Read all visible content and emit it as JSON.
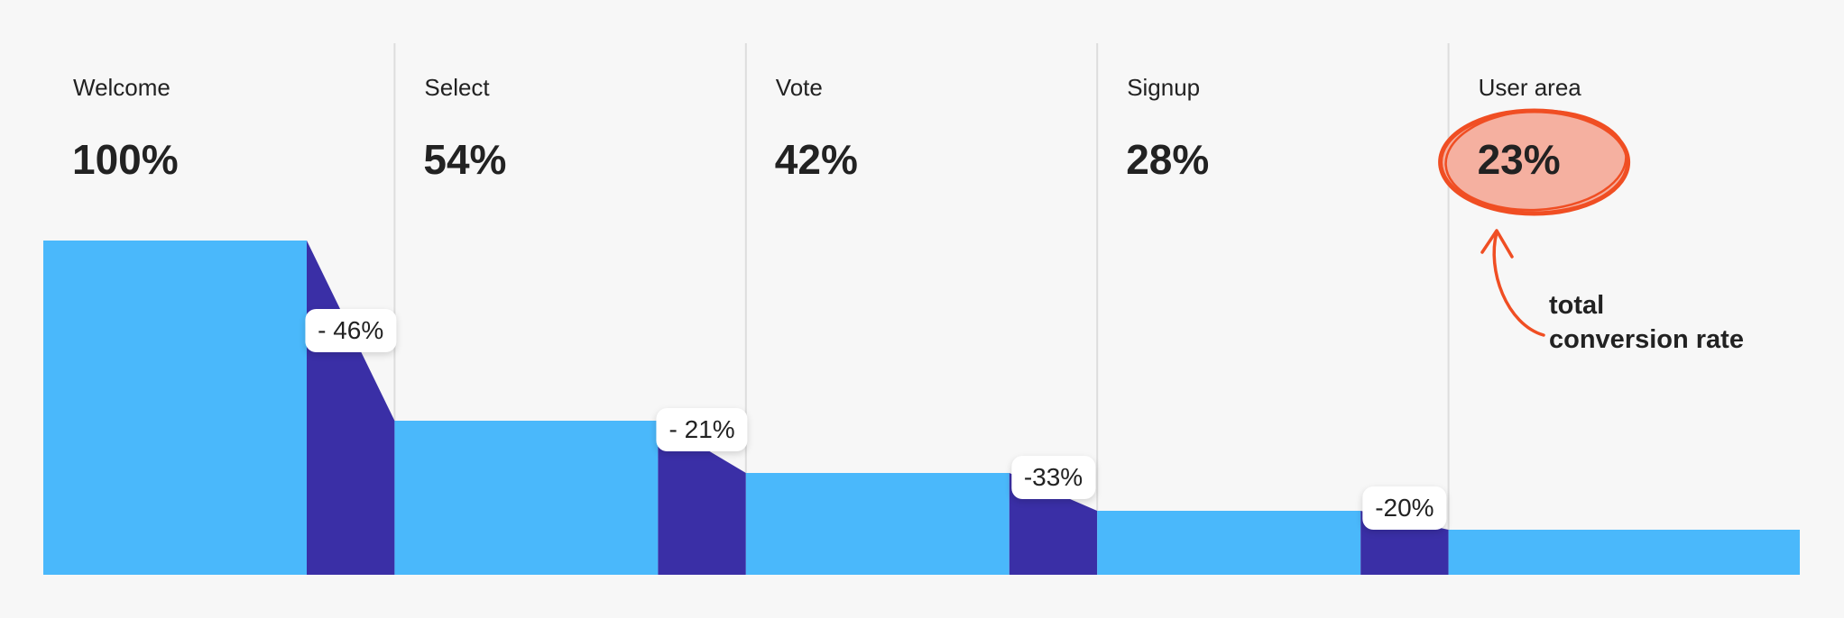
{
  "chart_data": {
    "type": "bar",
    "subtype": "funnel",
    "categories": [
      "Welcome",
      "Select",
      "Vote",
      "Signup",
      "User area"
    ],
    "values": [
      100,
      54,
      42,
      28,
      23
    ],
    "value_labels": [
      "100%",
      "54%",
      "42%",
      "28%",
      "23%"
    ],
    "dropoff_labels": [
      "- 46%",
      "- 21%",
      "-33%",
      "-20%"
    ],
    "dropoffs": [
      -46,
      -21,
      -33,
      -20
    ],
    "annotation": {
      "target": "User area",
      "text": "total conversion rate"
    },
    "grid": "vertical dividers between stages",
    "colors": {
      "bar": "#4ab8fb",
      "dropoff": "#3a2fa6",
      "highlight": "#f04e23",
      "highlight_fill": "#f5b0a0",
      "divider": "#dddddd",
      "background": "#f7f7f7"
    }
  }
}
